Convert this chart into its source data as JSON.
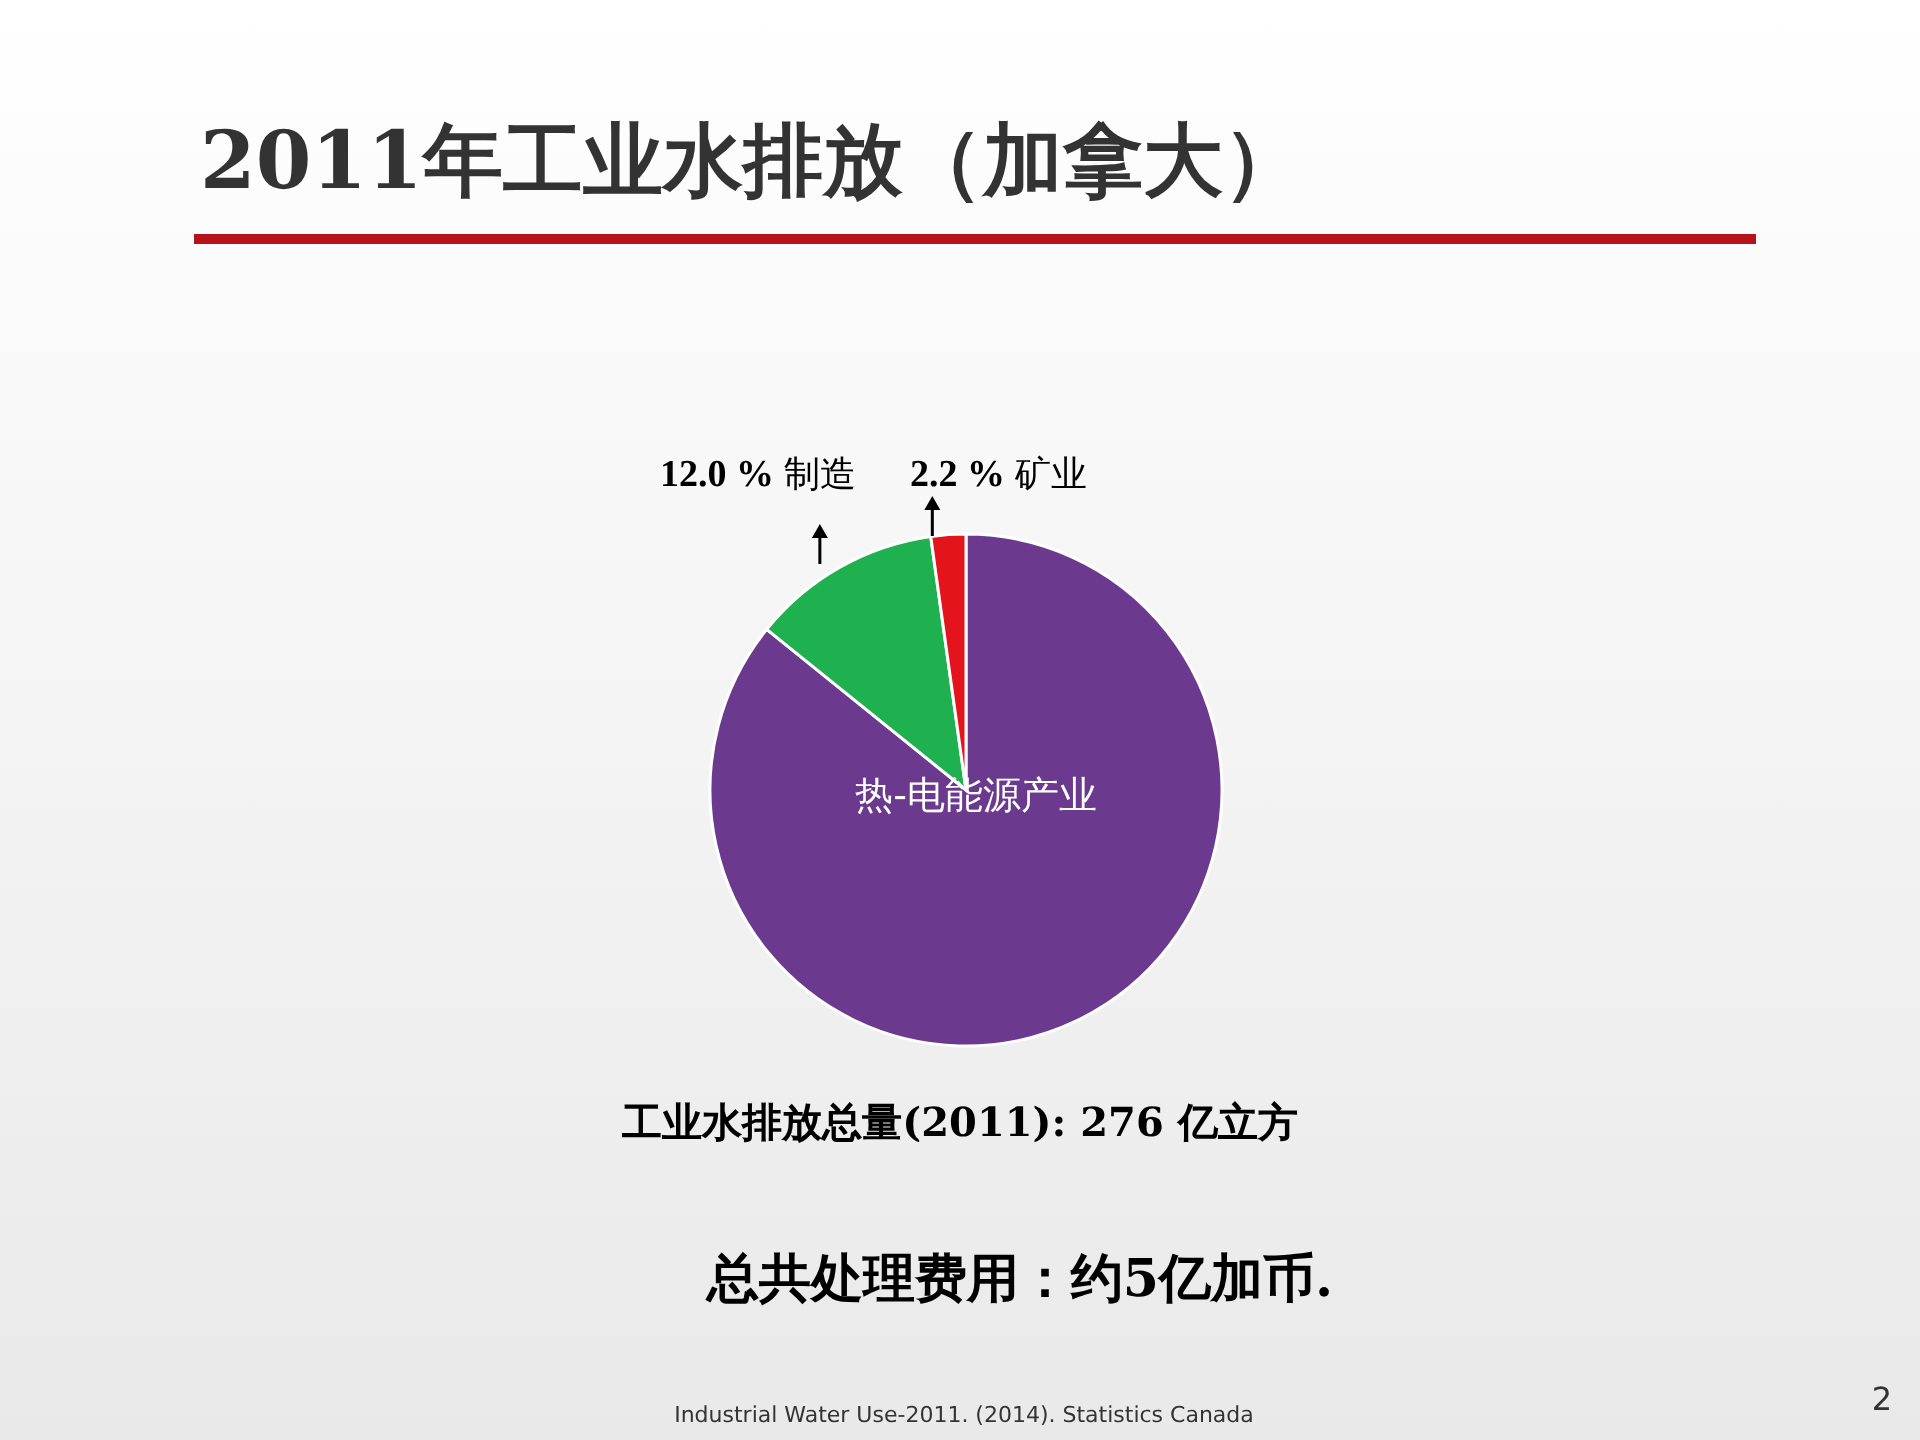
{
  "chart_data": {
    "type": "pie",
    "title": "2011年工业水排放（加拿大）",
    "categories": [
      "热-电能源产业",
      "制造",
      "矿业"
    ],
    "values": [
      85.8,
      12.0,
      2.2
    ],
    "value_labels": [
      null,
      "12.0 %",
      "2.2 %"
    ],
    "colors": [
      "#6b3a8f",
      "#1fb04f",
      "#e3141c"
    ],
    "annotations": [
      "工业水排放总量(2011): 276 亿立方",
      "总共处理费用：约5亿加币.",
      "Industrial Water Use-2011. (2014). Statistics Canada",
      "2"
    ]
  }
}
